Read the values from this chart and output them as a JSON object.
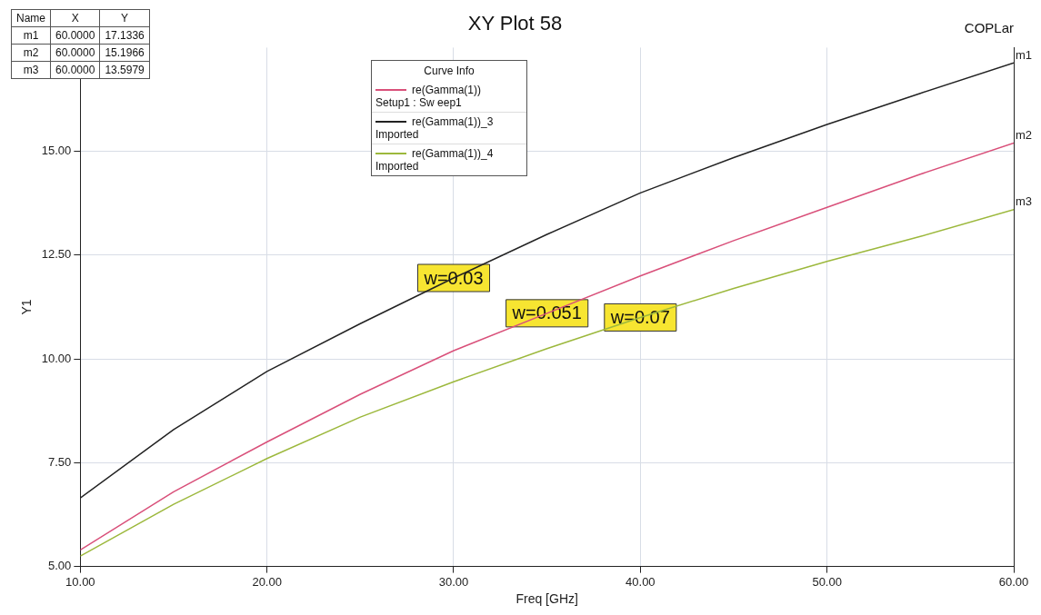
{
  "chart_data": {
    "type": "line",
    "title": "XY Plot 58",
    "xlabel": "Freq [GHz]",
    "ylabel": "Y1",
    "legend_title": "Curve Info",
    "legend": "top left",
    "grid": true,
    "marker": "none",
    "line_style": "solid",
    "x": [
      10,
      15,
      20,
      25,
      30,
      35,
      40,
      45,
      50,
      55,
      60
    ],
    "xlim": [
      10,
      60
    ],
    "xticks": [
      {
        "value": 10,
        "label": "10.00"
      },
      {
        "value": 20,
        "label": "20.00"
      },
      {
        "value": 30,
        "label": "30.00"
      },
      {
        "value": 40,
        "label": "40.00"
      },
      {
        "value": 50,
        "label": "50.00"
      },
      {
        "value": 60,
        "label": "60.00"
      }
    ],
    "ylim": [
      5,
      17.5
    ],
    "yticks": [
      {
        "value": 5,
        "label": "5.00"
      },
      {
        "value": 7.5,
        "label": "7.50"
      },
      {
        "value": 10,
        "label": "10.00"
      },
      {
        "value": 12.5,
        "label": "12.50"
      },
      {
        "value": 15,
        "label": "15.00"
      }
    ],
    "series": [
      {
        "name": "re(Gamma(1))\nSetup1 : Sw eep1",
        "color": "#d9507a",
        "values": [
          5.4,
          6.8,
          8.0,
          9.15,
          10.2,
          11.1,
          12.0,
          12.85,
          13.65,
          14.45,
          15.2
        ]
      },
      {
        "name": "re(Gamma(1))_3\nImported",
        "color": "#222222",
        "values": [
          6.65,
          8.3,
          9.7,
          10.85,
          11.95,
          13.0,
          14.0,
          14.85,
          15.65,
          16.4,
          17.13
        ]
      },
      {
        "name": "re(Gamma(1))_4\nImported",
        "color": "#9cb83c",
        "values": [
          5.25,
          6.5,
          7.6,
          8.6,
          9.45,
          10.25,
          11.0,
          11.7,
          12.35,
          12.95,
          13.6
        ]
      }
    ],
    "annotations": [
      "COPLar",
      "Name",
      "X",
      "Y",
      "m1",
      "60.0000",
      "17.1336",
      "m2",
      "60.0000",
      "15.1966",
      "m3",
      "60.0000",
      "13.5979",
      {
        "text": "m1",
        "x": 60,
        "y": 17.13
      },
      {
        "text": "m2",
        "x": 60,
        "y": 15.2
      },
      {
        "text": "m3",
        "x": 60,
        "y": 13.6
      },
      {
        "text": "w=0.03",
        "x": 30,
        "y": 11.95
      },
      {
        "text": "w=0.051",
        "x": 35,
        "y": 11.1
      },
      {
        "text": "w=0.07",
        "x": 40,
        "y": 11.0
      }
    ]
  }
}
